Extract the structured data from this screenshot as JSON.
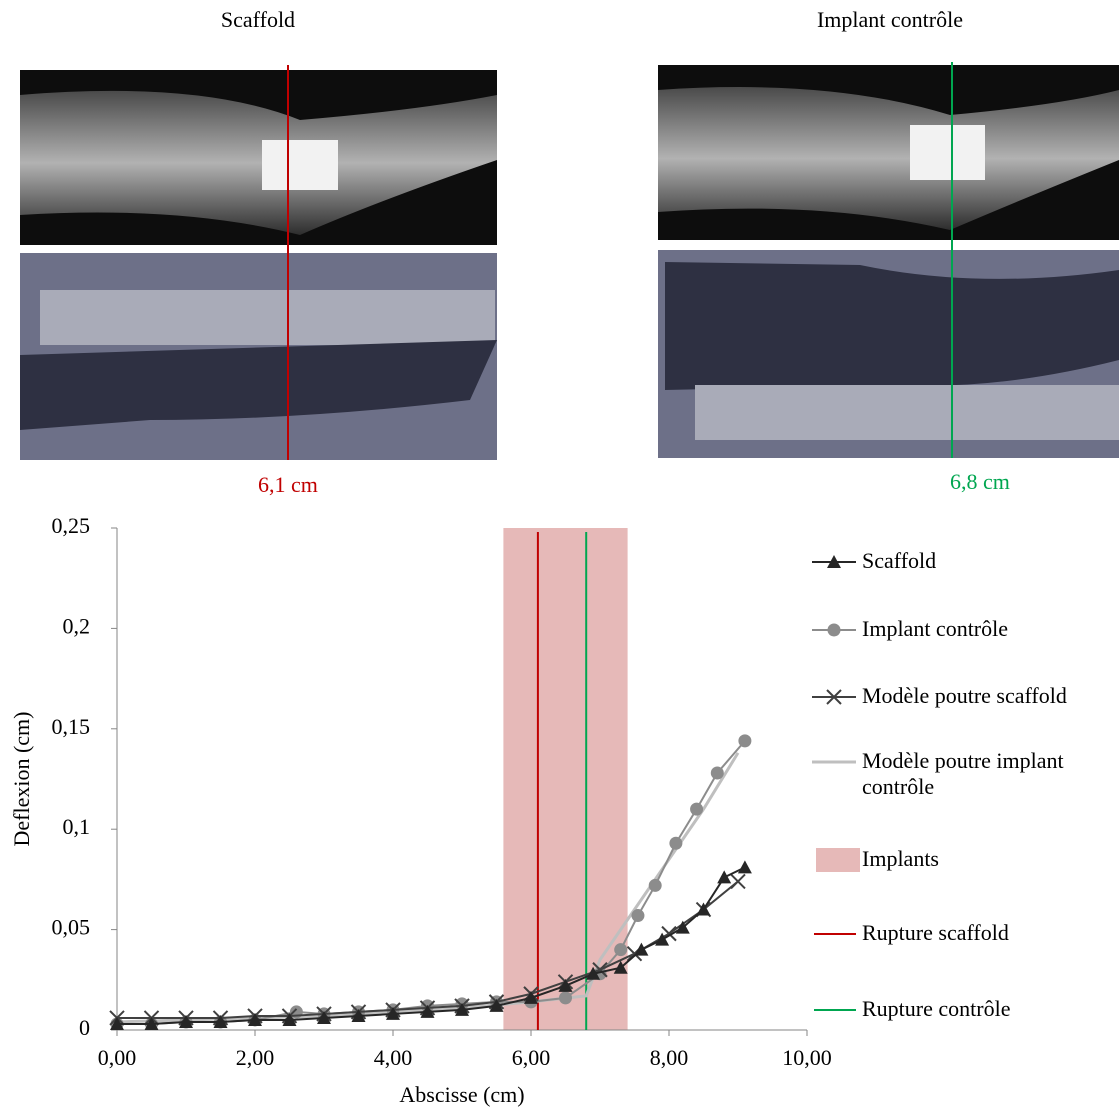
{
  "panels": [
    {
      "title": "Scaffold",
      "measure": "6,1 cm"
    },
    {
      "title": "Implant contrôle",
      "measure": "6,8 cm"
    }
  ],
  "chart_data": {
    "type": "line",
    "x_label": "Abscisse (cm)",
    "y_label": "Deflexion (cm)",
    "xlim": [
      0,
      10
    ],
    "ylim": [
      0,
      0.25
    ],
    "xticks": [
      {
        "value": 0,
        "label": "0,00"
      },
      {
        "value": 2,
        "label": "2,00"
      },
      {
        "value": 4,
        "label": "4,00"
      },
      {
        "value": 6,
        "label": "6,00"
      },
      {
        "value": 8,
        "label": "8,00"
      },
      {
        "value": 10,
        "label": "10,00"
      }
    ],
    "yticks": [
      0,
      {
        "value": 0.05,
        "label": "0,05"
      },
      {
        "value": 0.1,
        "label": "0,1"
      },
      {
        "value": 0.15,
        "label": "0,15"
      },
      {
        "value": 0.2,
        "label": "0,2"
      },
      {
        "value": 0.25,
        "label": "0,25"
      }
    ],
    "series": [
      {
        "name": "Scaffold",
        "color": "#262626",
        "marker": "triangle",
        "x": [
          0,
          0.5,
          1,
          1.5,
          2,
          2.5,
          3,
          3.5,
          4,
          4.5,
          5,
          5.5,
          6,
          6.5,
          6.9,
          7.3,
          7.6,
          7.9,
          8.2,
          8.5,
          8.8,
          9.1
        ],
        "values": [
          0.003,
          0.003,
          0.004,
          0.004,
          0.005,
          0.005,
          0.006,
          0.007,
          0.008,
          0.009,
          0.01,
          0.012,
          0.016,
          0.022,
          0.028,
          0.031,
          0.04,
          0.045,
          0.051,
          0.06,
          0.076,
          0.081
        ]
      },
      {
        "name": "Implant contrôle",
        "color": "#8c8c8c",
        "marker": "circle",
        "x": [
          0,
          0.5,
          1,
          1.5,
          2,
          2.6,
          3,
          3.5,
          4,
          4.5,
          5,
          5.5,
          6,
          6.5,
          7.0,
          7.3,
          7.55,
          7.8,
          8.1,
          8.4,
          8.7,
          9.1
        ],
        "values": [
          0.003,
          0.003,
          0.004,
          0.004,
          0.005,
          0.009,
          0.008,
          0.009,
          0.01,
          0.012,
          0.013,
          0.014,
          0.014,
          0.016,
          0.028,
          0.04,
          0.057,
          0.072,
          0.093,
          0.11,
          0.128,
          0.144
        ]
      },
      {
        "name": "Modèle poutre scaffold",
        "color": "#404040",
        "marker": "x",
        "x": [
          0,
          0.5,
          1,
          1.5,
          2,
          2.5,
          3,
          3.5,
          4,
          4.5,
          5,
          5.5,
          6,
          6.5,
          7,
          7.5,
          8,
          8.5,
          9
        ],
        "values": [
          0.006,
          0.006,
          0.006,
          0.006,
          0.007,
          0.007,
          0.008,
          0.009,
          0.01,
          0.011,
          0.012,
          0.014,
          0.018,
          0.024,
          0.03,
          0.038,
          0.048,
          0.06,
          0.074
        ]
      },
      {
        "name": "Modèle poutre implant contrôle",
        "color": "#bfbfbf",
        "marker": "none",
        "x": [
          0,
          1,
          2,
          3,
          4,
          5,
          6,
          6.8,
          7.0,
          7.5,
          8,
          8.5,
          9
        ],
        "values": [
          0.004,
          0.005,
          0.006,
          0.007,
          0.009,
          0.011,
          0.014,
          0.017,
          0.035,
          0.06,
          0.085,
          0.11,
          0.138
        ]
      }
    ],
    "bands": [
      {
        "name": "Implants",
        "color": "#e6b9b8",
        "x": [
          5.6,
          7.4
        ]
      }
    ],
    "vlines": [
      {
        "name": "Rupture scaffold",
        "color": "#c00000",
        "x": 6.1
      },
      {
        "name": "Rupture contrôle",
        "color": "#00a650",
        "x": 6.8
      }
    ]
  }
}
